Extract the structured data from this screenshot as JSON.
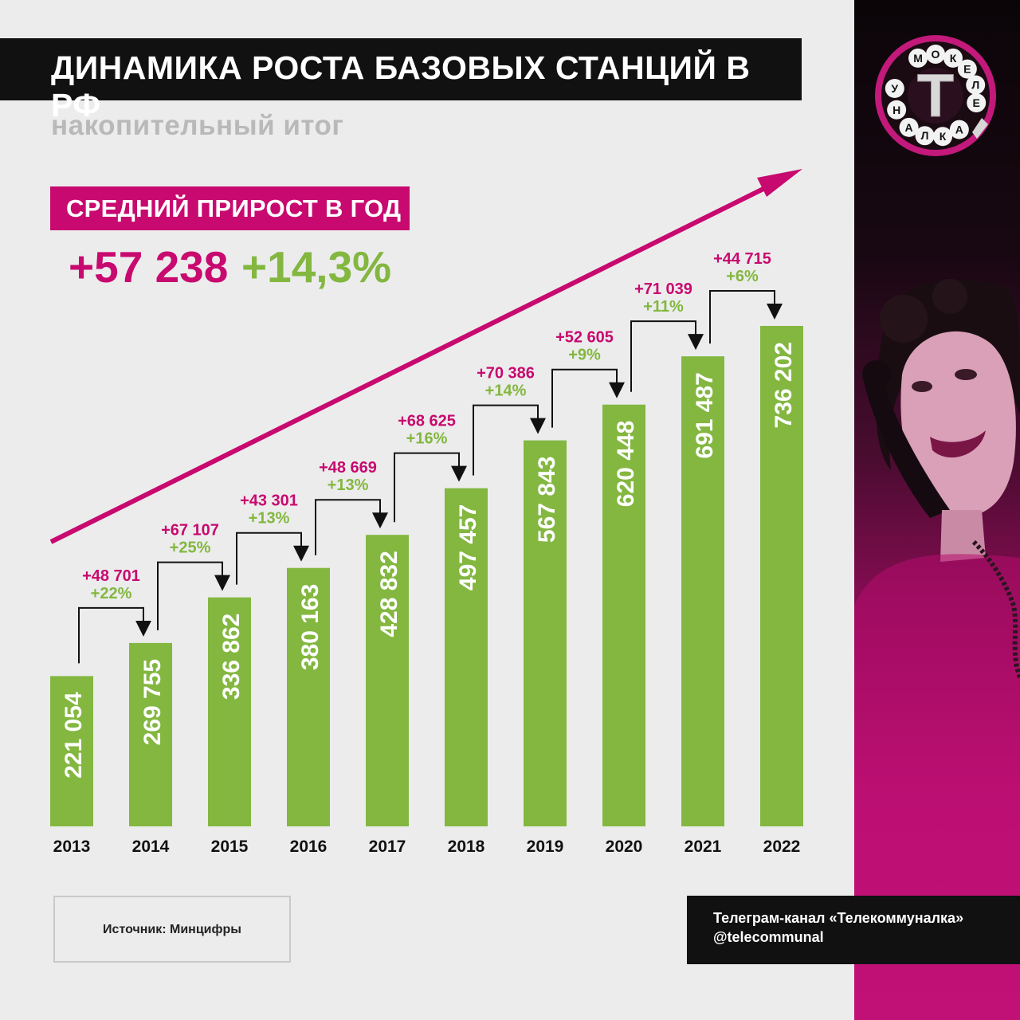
{
  "header": {
    "title": "ДИНАМИКА РОСТА БАЗОВЫХ СТАНЦИЙ В РФ",
    "subtitle": "накопительный итог"
  },
  "summary": {
    "label": "СРЕДНИЙ ПРИРОСТ В ГОД",
    "abs_value": "+57 238",
    "pct_value": "+14,3%"
  },
  "chart_data": {
    "type": "bar",
    "title": "ДИНАМИКА РОСТА БАЗОВЫХ СТАНЦИЙ В РФ",
    "subtitle": "накопительный итог",
    "categories": [
      "2013",
      "2014",
      "2015",
      "2016",
      "2017",
      "2018",
      "2019",
      "2020",
      "2021",
      "2022"
    ],
    "values": [
      221054,
      269755,
      336862,
      380163,
      428832,
      497457,
      567843,
      620448,
      691487,
      736202
    ],
    "value_labels": [
      "221 054",
      "269 755",
      "336 862",
      "380 163",
      "428 832",
      "497 457",
      "567 843",
      "620 448",
      "691 487",
      "736 202"
    ],
    "increments": [
      {
        "abs": "+48 701",
        "pct": "+22%"
      },
      {
        "abs": "+67 107",
        "pct": "+25%"
      },
      {
        "abs": "+43 301",
        "pct": "+13%"
      },
      {
        "abs": "+48 669",
        "pct": "+13%"
      },
      {
        "abs": "+68 625",
        "pct": "+16%"
      },
      {
        "abs": "+70 386",
        "pct": "+14%"
      },
      {
        "abs": "+52 605",
        "pct": "+9%"
      },
      {
        "abs": "+71 039",
        "pct": "+11%"
      },
      {
        "abs": "+44 715",
        "pct": "+6%"
      }
    ],
    "ylim": [
      0,
      736202
    ],
    "grid": false,
    "legend": "none",
    "colors": {
      "bar": "#83b740",
      "accent": "#c8096f",
      "increment_pct": "#83b740"
    }
  },
  "logo": {
    "letter": "Т",
    "ring_letters": [
      "М",
      "О",
      "К",
      "Е",
      "Л",
      "Е",
      "А",
      "К",
      "Л",
      "А",
      "Н",
      "У"
    ]
  },
  "footer": {
    "source": "Источник: Минцифры",
    "channel_line1": "Телеграм-канал «Телекоммуналка»",
    "channel_line2": "@telecommunal"
  }
}
